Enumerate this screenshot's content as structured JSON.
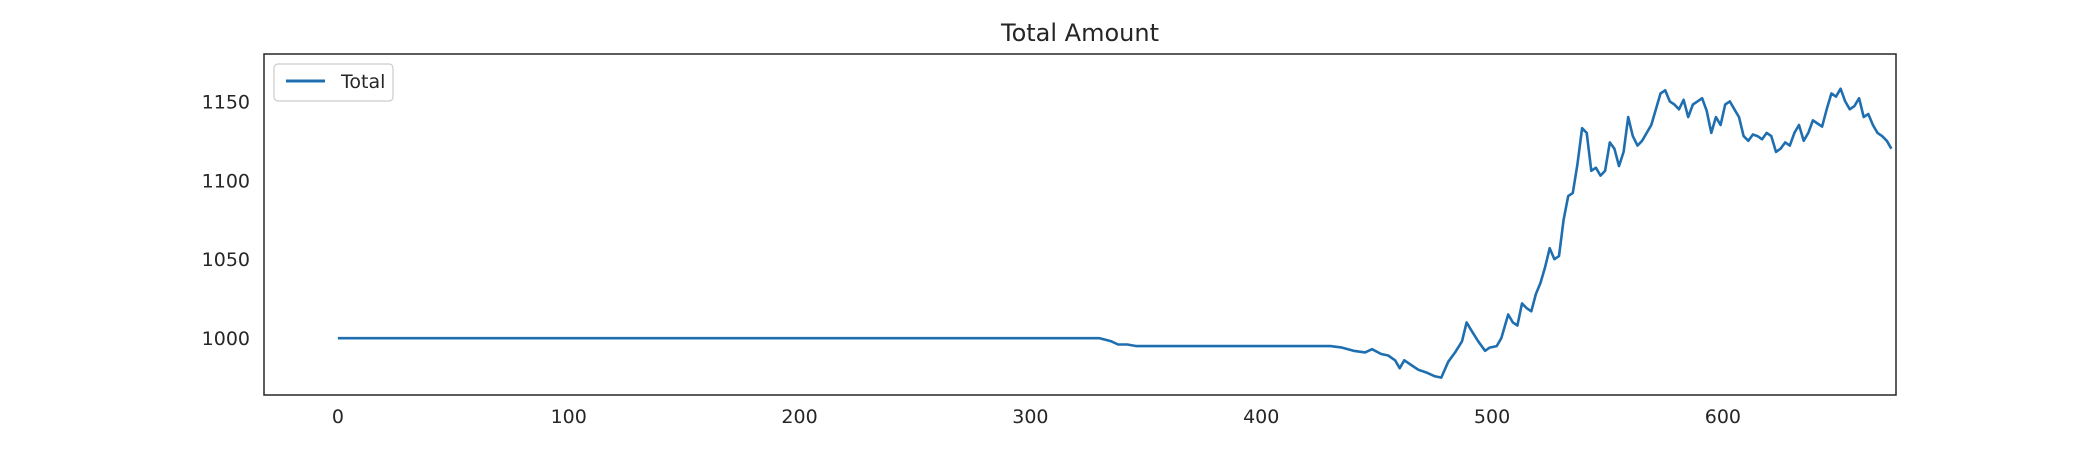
{
  "chart_data": {
    "type": "line",
    "title": "Total Amount",
    "xlabel": "",
    "ylabel": "",
    "xlim": [
      -32,
      675
    ],
    "ylim": [
      964,
      1180
    ],
    "xticks": [
      0,
      100,
      200,
      300,
      400,
      500,
      600
    ],
    "yticks": [
      1000,
      1050,
      1100,
      1150
    ],
    "grid": false,
    "legend_position": "top-left",
    "series": [
      {
        "name": "Total",
        "color": "#1f6fb0",
        "points": [
          [
            0,
            1000
          ],
          [
            330,
            1000
          ],
          [
            335,
            998
          ],
          [
            338,
            996
          ],
          [
            342,
            996
          ],
          [
            346,
            995
          ],
          [
            430,
            995
          ],
          [
            435,
            994
          ],
          [
            440,
            992
          ],
          [
            445,
            991
          ],
          [
            448,
            993
          ],
          [
            452,
            990
          ],
          [
            455,
            989
          ],
          [
            458,
            986
          ],
          [
            460,
            981
          ],
          [
            462,
            986
          ],
          [
            465,
            983
          ],
          [
            468,
            980
          ],
          [
            472,
            978
          ],
          [
            475,
            976
          ],
          [
            478,
            975
          ],
          [
            481,
            985
          ],
          [
            484,
            991
          ],
          [
            487,
            998
          ],
          [
            489,
            1010
          ],
          [
            491,
            1005
          ],
          [
            494,
            998
          ],
          [
            497,
            992
          ],
          [
            499,
            994
          ],
          [
            502,
            995
          ],
          [
            504,
            1000
          ],
          [
            507,
            1015
          ],
          [
            509,
            1010
          ],
          [
            511,
            1008
          ],
          [
            513,
            1022
          ],
          [
            515,
            1019
          ],
          [
            517,
            1017
          ],
          [
            519,
            1028
          ],
          [
            521,
            1035
          ],
          [
            523,
            1045
          ],
          [
            525,
            1057
          ],
          [
            527,
            1050
          ],
          [
            529,
            1052
          ],
          [
            531,
            1075
          ],
          [
            533,
            1090
          ],
          [
            535,
            1092
          ],
          [
            537,
            1110
          ],
          [
            539,
            1133
          ],
          [
            541,
            1130
          ],
          [
            543,
            1106
          ],
          [
            545,
            1108
          ],
          [
            547,
            1103
          ],
          [
            549,
            1106
          ],
          [
            551,
            1124
          ],
          [
            553,
            1120
          ],
          [
            555,
            1109
          ],
          [
            557,
            1118
          ],
          [
            559,
            1140
          ],
          [
            561,
            1128
          ],
          [
            563,
            1122
          ],
          [
            565,
            1125
          ],
          [
            567,
            1130
          ],
          [
            569,
            1135
          ],
          [
            571,
            1145
          ],
          [
            573,
            1155
          ],
          [
            575,
            1157
          ],
          [
            577,
            1150
          ],
          [
            579,
            1148
          ],
          [
            581,
            1145
          ],
          [
            583,
            1151
          ],
          [
            585,
            1140
          ],
          [
            587,
            1148
          ],
          [
            589,
            1150
          ],
          [
            591,
            1152
          ],
          [
            593,
            1144
          ],
          [
            595,
            1130
          ],
          [
            597,
            1140
          ],
          [
            599,
            1135
          ],
          [
            601,
            1148
          ],
          [
            603,
            1150
          ],
          [
            605,
            1145
          ],
          [
            607,
            1140
          ],
          [
            609,
            1128
          ],
          [
            611,
            1125
          ],
          [
            613,
            1129
          ],
          [
            615,
            1128
          ],
          [
            617,
            1126
          ],
          [
            619,
            1130
          ],
          [
            621,
            1128
          ],
          [
            623,
            1118
          ],
          [
            625,
            1120
          ],
          [
            627,
            1124
          ],
          [
            629,
            1122
          ],
          [
            631,
            1130
          ],
          [
            633,
            1135
          ],
          [
            635,
            1125
          ],
          [
            637,
            1130
          ],
          [
            639,
            1138
          ],
          [
            641,
            1136
          ],
          [
            643,
            1134
          ],
          [
            645,
            1145
          ],
          [
            647,
            1155
          ],
          [
            649,
            1153
          ],
          [
            651,
            1158
          ],
          [
            653,
            1150
          ],
          [
            655,
            1145
          ],
          [
            657,
            1147
          ],
          [
            659,
            1152
          ],
          [
            661,
            1140
          ],
          [
            663,
            1142
          ],
          [
            665,
            1135
          ],
          [
            667,
            1130
          ],
          [
            669,
            1128
          ],
          [
            671,
            1125
          ],
          [
            673,
            1120
          ]
        ]
      }
    ]
  }
}
